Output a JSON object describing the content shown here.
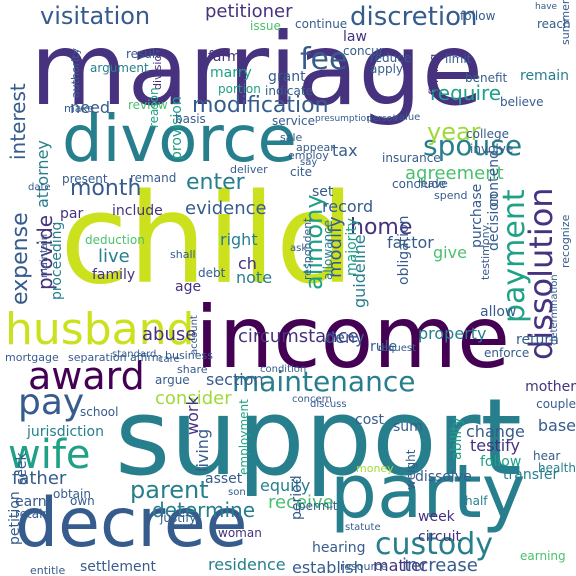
{
  "palette": {
    "p1": "#440154",
    "p2": "#46327e",
    "p3": "#365c8d",
    "p4": "#277f8e",
    "p5": "#1fa187",
    "p6": "#4ac16d",
    "p7": "#a0da39",
    "p8": "#cbe11e"
  },
  "words": [
    "marriage",
    "child",
    "support",
    "income",
    "divorce",
    "party",
    "decree",
    "husband",
    "award",
    "maintenance",
    "custody",
    "dissolution",
    "wife",
    "pay",
    "spouse",
    "payment",
    "visitation",
    "discretion",
    "fee",
    "modification",
    "alimony",
    "expense",
    "month",
    "year",
    "interest",
    "petitioner",
    "parent",
    "determine",
    "circumstance",
    "consider",
    "provide",
    "evidence",
    "enter",
    "abuse",
    "modify",
    "agreement",
    "home",
    "record",
    "guideline",
    "property",
    "obligation",
    "live",
    "family",
    "right",
    "section",
    "jurisdiction",
    "father",
    "equity",
    "receive",
    "establish",
    "residence",
    "settlement",
    "hearing",
    "matter",
    "increase",
    "week",
    "testify",
    "follow",
    "change",
    "base",
    "mother",
    "earning",
    "transfer",
    "ability",
    "circuit",
    "petition",
    "attorney",
    "proceeding",
    "require",
    "need",
    "law",
    "concur",
    "farm",
    "marry",
    "grant",
    "issue",
    "continue",
    "follow",
    "provision",
    "tax",
    "factor",
    "contend",
    "decision",
    "purchase",
    "insurance",
    "college",
    "involve",
    "believe",
    "reach",
    "benefit",
    "remain",
    "finding",
    "reduce",
    "apply",
    "limit",
    "argument",
    "result",
    "division",
    "authority",
    "summer",
    "make",
    "indicate",
    "portion",
    "review",
    "reason",
    "basis",
    "service",
    "present",
    "remand",
    "include",
    "par",
    "deduction",
    "shall",
    "note",
    "age",
    "debt",
    "ch",
    "give",
    "allowance",
    "majority",
    "respondent",
    "allow",
    "deny",
    "rule",
    "enforce",
    "return",
    "sum",
    "cost",
    "work",
    "living",
    "employment",
    "asset",
    "woman",
    "hear",
    "health",
    "couple",
    "half",
    "weight",
    "money",
    "dissolve",
    "seek",
    "school",
    "standard",
    "care",
    "mortgage",
    "separation",
    "affirm",
    "business",
    "argue",
    "share",
    "earn",
    "retain",
    "obtain",
    "own",
    "justify",
    "entitle",
    "permit",
    "period",
    "statute",
    "resource",
    "son",
    "concern",
    "request",
    "determination",
    "say",
    "cite",
    "deliver",
    "employ",
    "sale",
    "appear",
    "conclude",
    "leave",
    "spend",
    "date",
    "set",
    "testimony",
    "recognize",
    "maintain",
    "account",
    "condition",
    "discuss",
    "ask",
    "person",
    "presumption",
    "value",
    "have"
  ]
}
